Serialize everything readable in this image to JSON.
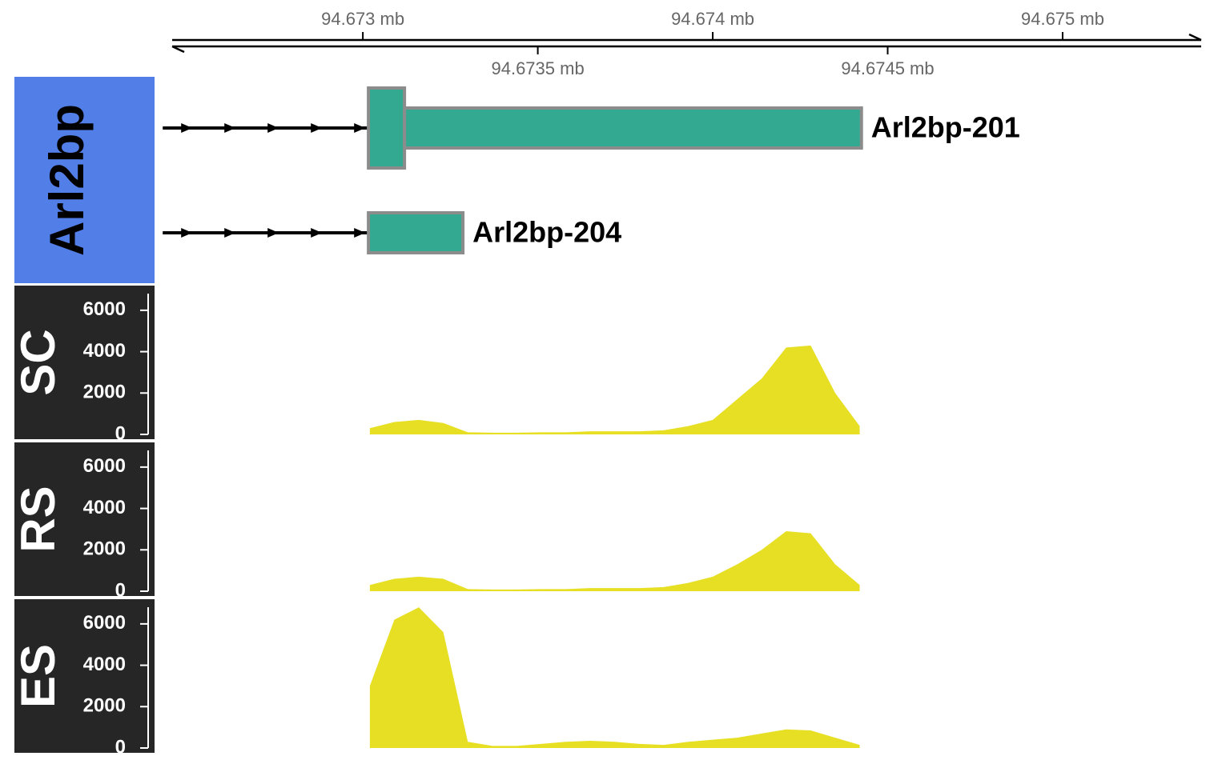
{
  "chart_data": {
    "type": "genome-tracks",
    "xlim": [
      94.672455,
      94.675396
    ],
    "xticks": [
      {
        "value": 94.673,
        "label": "94.673 mb"
      },
      {
        "value": 94.6735,
        "label": "94.6735 mb"
      },
      {
        "value": 94.674,
        "label": "94.674 mb"
      },
      {
        "value": 94.6745,
        "label": "94.6745 mb"
      },
      {
        "value": 94.675,
        "label": "94.675 mb"
      }
    ],
    "gene_track": {
      "title": "Arl2bp",
      "color": "#33a991",
      "transcripts": [
        {
          "name": "Arl2bp-201",
          "start": 94.672428,
          "exons": [
            {
              "start": 94.673016,
              "end": 94.673119,
              "coding": true
            },
            {
              "start": 94.673119,
              "end": 94.674425,
              "coding": false
            }
          ]
        },
        {
          "name": "Arl2bp-204",
          "start": 94.672428,
          "exons": [
            {
              "start": 94.673016,
              "end": 94.673286,
              "coding": false
            }
          ]
        }
      ]
    },
    "coverage": {
      "type": "area",
      "color": "#e6df24",
      "ylim": [
        0,
        7000
      ],
      "yticks": [
        0,
        2000,
        4000,
        6000
      ],
      "x": [
        94.67302,
        94.67309,
        94.67316,
        94.67323,
        94.6733,
        94.67337,
        94.67344,
        94.67351,
        94.67358,
        94.67365,
        94.67372,
        94.67379,
        94.67386,
        94.67393,
        94.674,
        94.67407,
        94.67414,
        94.67421,
        94.67428,
        94.67435,
        94.67442
      ],
      "series": [
        {
          "name": "SC",
          "values": [
            300,
            600,
            700,
            550,
            100,
            80,
            80,
            100,
            100,
            150,
            150,
            150,
            200,
            400,
            700,
            1700,
            2700,
            4200,
            4300,
            2000,
            400
          ]
        },
        {
          "name": "RS",
          "values": [
            300,
            600,
            700,
            600,
            100,
            80,
            80,
            100,
            100,
            150,
            150,
            150,
            200,
            400,
            700,
            1300,
            2000,
            2900,
            2800,
            1300,
            300
          ]
        },
        {
          "name": "ES",
          "values": [
            3000,
            6200,
            6800,
            5600,
            300,
            100,
            100,
            200,
            300,
            350,
            300,
            200,
            150,
            300,
            400,
            500,
            700,
            900,
            850,
            500,
            150
          ]
        }
      ]
    }
  }
}
